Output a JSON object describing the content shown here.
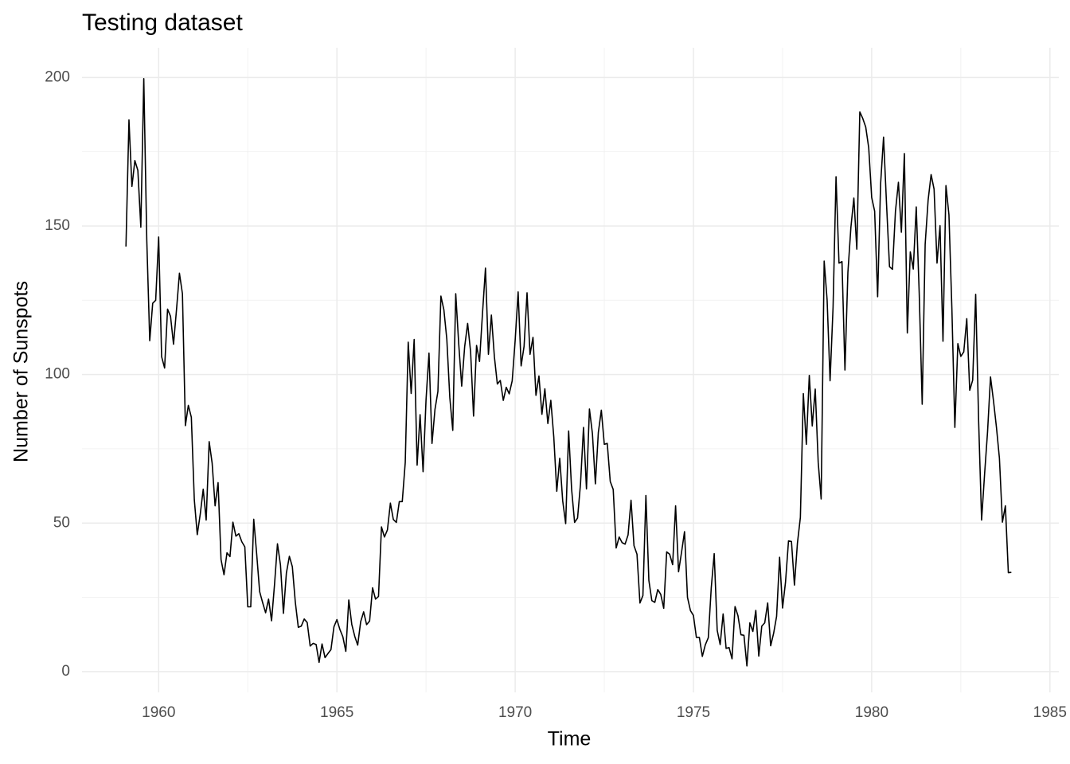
{
  "chart_data": {
    "type": "line",
    "title": "Testing dataset",
    "x_label": "Time",
    "y_label": "Number of Sunspots",
    "grid": true,
    "xlim": [
      1957.85,
      1985.25
    ],
    "ylim": [
      -7,
      210
    ],
    "xticks": [
      1960,
      1965,
      1970,
      1975,
      1980,
      1985
    ],
    "yticks": [
      0,
      50,
      100,
      150,
      200
    ],
    "x": [
      1959.083,
      1959.167,
      1959.25,
      1959.333,
      1959.417,
      1959.5,
      1959.583,
      1959.667,
      1959.75,
      1959.833,
      1959.917,
      1960,
      1960.083,
      1960.167,
      1960.25,
      1960.333,
      1960.417,
      1960.5,
      1960.583,
      1960.667,
      1960.75,
      1960.833,
      1960.917,
      1961,
      1961.083,
      1961.167,
      1961.25,
      1961.333,
      1961.417,
      1961.5,
      1961.583,
      1961.667,
      1961.75,
      1961.833,
      1961.917,
      1962,
      1962.083,
      1962.167,
      1962.25,
      1962.333,
      1962.417,
      1962.5,
      1962.583,
      1962.667,
      1962.75,
      1962.833,
      1962.917,
      1963,
      1963.083,
      1963.167,
      1963.25,
      1963.333,
      1963.417,
      1963.5,
      1963.583,
      1963.667,
      1963.75,
      1963.833,
      1963.917,
      1964,
      1964.083,
      1964.167,
      1964.25,
      1964.333,
      1964.417,
      1964.5,
      1964.583,
      1964.667,
      1964.75,
      1964.833,
      1964.917,
      1965,
      1965.083,
      1965.167,
      1965.25,
      1965.333,
      1965.417,
      1965.5,
      1965.583,
      1965.667,
      1965.75,
      1965.833,
      1965.917,
      1966,
      1966.083,
      1966.167,
      1966.25,
      1966.333,
      1966.417,
      1966.5,
      1966.583,
      1966.667,
      1966.75,
      1966.833,
      1966.917,
      1967,
      1967.083,
      1967.167,
      1967.25,
      1967.333,
      1967.417,
      1967.5,
      1967.583,
      1967.667,
      1967.75,
      1967.833,
      1967.917,
      1968,
      1968.083,
      1968.167,
      1968.25,
      1968.333,
      1968.417,
      1968.5,
      1968.583,
      1968.667,
      1968.75,
      1968.833,
      1968.917,
      1969,
      1969.083,
      1969.167,
      1969.25,
      1969.333,
      1969.417,
      1969.5,
      1969.583,
      1969.667,
      1969.75,
      1969.833,
      1969.917,
      1970,
      1970.083,
      1970.167,
      1970.25,
      1970.333,
      1970.417,
      1970.5,
      1970.583,
      1970.667,
      1970.75,
      1970.833,
      1970.917,
      1971,
      1971.083,
      1971.167,
      1971.25,
      1971.333,
      1971.417,
      1971.5,
      1971.583,
      1971.667,
      1971.75,
      1971.833,
      1971.917,
      1972,
      1972.083,
      1972.167,
      1972.25,
      1972.333,
      1972.417,
      1972.5,
      1972.583,
      1972.667,
      1972.75,
      1972.833,
      1972.917,
      1973,
      1973.083,
      1973.167,
      1973.25,
      1973.333,
      1973.417,
      1973.5,
      1973.583,
      1973.667,
      1973.75,
      1973.833,
      1973.917,
      1974,
      1974.083,
      1974.167,
      1974.25,
      1974.333,
      1974.417,
      1974.5,
      1974.583,
      1974.667,
      1974.75,
      1974.833,
      1974.917,
      1975,
      1975.083,
      1975.167,
      1975.25,
      1975.333,
      1975.417,
      1975.5,
      1975.583,
      1975.667,
      1975.75,
      1975.833,
      1975.917,
      1976,
      1976.083,
      1976.167,
      1976.25,
      1976.333,
      1976.417,
      1976.5,
      1976.583,
      1976.667,
      1976.75,
      1976.833,
      1976.917,
      1977,
      1977.083,
      1977.167,
      1977.25,
      1977.333,
      1977.417,
      1977.5,
      1977.583,
      1977.667,
      1977.75,
      1977.833,
      1977.917,
      1978,
      1978.083,
      1978.167,
      1978.25,
      1978.333,
      1978.417,
      1978.5,
      1978.583,
      1978.667,
      1978.75,
      1978.833,
      1978.917,
      1979,
      1979.083,
      1979.167,
      1979.25,
      1979.333,
      1979.417,
      1979.5,
      1979.583,
      1979.667,
      1979.75,
      1979.833,
      1979.917,
      1980,
      1980.083,
      1980.167,
      1980.25,
      1980.333,
      1980.417,
      1980.5,
      1980.583,
      1980.667,
      1980.75,
      1980.833,
      1980.917,
      1981,
      1981.083,
      1981.167,
      1981.25,
      1981.333,
      1981.417,
      1981.5,
      1981.583,
      1981.667,
      1981.75,
      1981.833,
      1981.917,
      1982,
      1982.083,
      1982.167,
      1982.25,
      1982.333,
      1982.417,
      1982.5,
      1982.583,
      1982.667,
      1982.75,
      1982.833,
      1982.917,
      1983,
      1983.083,
      1983.167,
      1983.25,
      1983.333,
      1983.417,
      1983.5,
      1983.583,
      1983.667,
      1983.75,
      1983.833,
      1983.917
    ],
    "color": "#000000",
    "values": [
      143.1,
      185.7,
      163.3,
      172.0,
      168.7,
      149.6,
      199.6,
      145.2,
      111.4,
      124.0,
      125.0,
      146.3,
      106.0,
      102.2,
      122.0,
      119.6,
      110.2,
      121.7,
      134.1,
      127.2,
      82.8,
      89.6,
      85.6,
      57.9,
      46.1,
      53.0,
      61.4,
      51.0,
      77.4,
      70.2,
      55.8,
      63.6,
      37.7,
      32.6,
      40.0,
      38.7,
      50.3,
      45.6,
      46.4,
      43.7,
      42.0,
      21.8,
      21.8,
      51.3,
      39.5,
      26.9,
      23.2,
      19.8,
      24.4,
      17.1,
      29.3,
      43.0,
      35.9,
      19.6,
      33.2,
      38.8,
      35.3,
      23.4,
      14.9,
      15.3,
      17.7,
      16.5,
      8.6,
      9.5,
      9.1,
      3.1,
      9.3,
      4.7,
      6.1,
      7.4,
      15.1,
      17.5,
      14.2,
      11.7,
      6.8,
      24.1,
      15.9,
      11.9,
      8.9,
      16.8,
      20.1,
      15.8,
      17.0,
      28.2,
      24.4,
      25.3,
      48.7,
      45.3,
      47.7,
      56.7,
      51.2,
      50.2,
      57.2,
      57.2,
      70.4,
      110.9,
      93.6,
      111.8,
      69.5,
      86.5,
      67.3,
      91.5,
      107.2,
      76.8,
      88.2,
      94.3,
      126.4,
      121.8,
      111.9,
      92.2,
      81.2,
      127.2,
      110.3,
      96.1,
      109.3,
      117.2,
      107.7,
      86.0,
      109.8,
      104.4,
      120.5,
      135.8,
      106.8,
      120.0,
      106.0,
      96.8,
      98.0,
      91.3,
      95.7,
      93.5,
      97.9,
      111.5,
      127.8,
      102.9,
      109.5,
      127.5,
      106.8,
      112.5,
      93.0,
      99.5,
      86.6,
      95.2,
      83.5,
      91.3,
      79.0,
      60.7,
      71.8,
      57.5,
      49.8,
      81.0,
      61.4,
      50.2,
      51.7,
      63.2,
      82.2,
      61.5,
      88.4,
      80.1,
      63.2,
      80.5,
      88.0,
      76.5,
      76.8,
      64.0,
      61.3,
      41.6,
      45.3,
      43.4,
      42.9,
      46.0,
      57.7,
      42.4,
      39.5,
      23.1,
      25.6,
      59.3,
      30.7,
      23.9,
      23.3,
      27.6,
      26.0,
      21.3,
      40.3,
      39.5,
      36.0,
      55.8,
      33.6,
      40.2,
      47.1,
      25.0,
      20.5,
      18.9,
      11.5,
      11.5,
      5.1,
      9.0,
      11.4,
      28.2,
      39.7,
      13.9,
      9.1,
      19.4,
      7.8,
      8.1,
      4.3,
      21.9,
      18.8,
      12.4,
      12.2,
      1.9,
      16.4,
      13.5,
      20.6,
      5.2,
      15.3,
      16.4,
      23.1,
      8.7,
      12.9,
      18.6,
      38.5,
      21.4,
      30.1,
      44.0,
      43.8,
      29.1,
      43.2,
      51.9,
      93.6,
      76.5,
      99.7,
      82.7,
      95.1,
      70.4,
      58.1,
      138.2,
      125.1,
      97.9,
      122.7,
      166.6,
      137.5,
      138.0,
      101.5,
      134.4,
      149.5,
      159.4,
      142.2,
      188.4,
      186.2,
      183.3,
      176.3,
      159.6,
      155.0,
      126.2,
      164.1,
      179.9,
      157.3,
      136.3,
      135.4,
      155.0,
      164.7,
      147.9,
      174.4,
      114.0,
      141.3,
      135.5,
      156.4,
      127.5,
      90.0,
      143.8,
      158.7,
      167.3,
      162.4,
      137.5,
      150.1,
      111.2,
      163.6,
      153.8,
      122.0,
      82.2,
      110.4,
      106.1,
      107.6,
      118.8,
      94.7,
      98.1,
      127.0,
      84.3,
      51.0,
      66.5,
      80.7,
      99.2,
      91.1,
      82.2,
      71.8,
      50.3,
      55.8,
      33.3,
      33.4
    ]
  }
}
